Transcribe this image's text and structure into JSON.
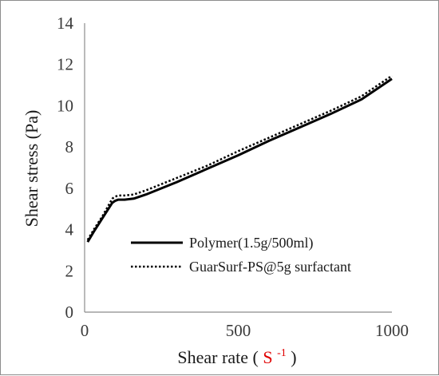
{
  "chart_data": {
    "type": "line",
    "title": "",
    "xlabel": "Shear rate",
    "xlabel_unit": "S",
    "xlabel_unit_exponent": "-1",
    "xlabel_unit_color": "#e00000",
    "ylabel": "Shear stress (Pa)",
    "xlim": [
      0,
      1000
    ],
    "ylim": [
      0,
      14
    ],
    "x_ticks": [
      "0",
      "500",
      "1000"
    ],
    "y_ticks": [
      "0",
      "2",
      "4",
      "6",
      "8",
      "10",
      "12",
      "14"
    ],
    "grid": false,
    "legend_position": "bottom-right",
    "series": [
      {
        "name": "Polymer(1.5g/500ml)",
        "style": "solid",
        "color": "#000000",
        "x": [
          10,
          30,
          60,
          90,
          100,
          110,
          130,
          160,
          200,
          300,
          400,
          500,
          600,
          700,
          800,
          900,
          1000
        ],
        "y": [
          3.4,
          3.9,
          4.6,
          5.3,
          5.4,
          5.45,
          5.45,
          5.5,
          5.7,
          6.3,
          6.95,
          7.6,
          8.3,
          8.95,
          9.6,
          10.3,
          11.3
        ]
      },
      {
        "name": "GuarSurf-PS@5g surfactant",
        "style": "dotted",
        "color": "#000000",
        "x": [
          10,
          30,
          60,
          90,
          100,
          110,
          130,
          160,
          200,
          300,
          400,
          500,
          600,
          700,
          800,
          900,
          1000
        ],
        "y": [
          3.5,
          4.0,
          4.7,
          5.5,
          5.6,
          5.65,
          5.65,
          5.7,
          5.9,
          6.5,
          7.1,
          7.8,
          8.45,
          9.1,
          9.75,
          10.45,
          11.45
        ]
      }
    ]
  }
}
